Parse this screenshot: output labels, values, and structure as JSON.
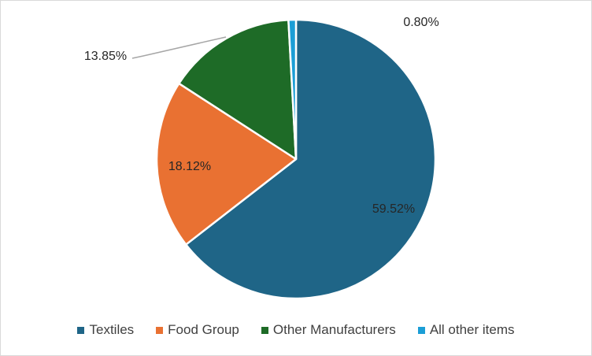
{
  "chart_data": {
    "type": "pie",
    "categories": [
      "Textiles",
      "Food Group",
      "Other Manufacturers",
      "All other items"
    ],
    "values": [
      59.52,
      18.12,
      13.85,
      0.8
    ],
    "data_labels": [
      "59.52%",
      "18.12%",
      "13.85%",
      "0.80%"
    ],
    "colors": [
      "#1f6587",
      "#e97132",
      "#1e6b27",
      "#1b9ed6"
    ],
    "legend_position": "bottom",
    "start_angle_deg": 0,
    "direction": "clockwise"
  }
}
